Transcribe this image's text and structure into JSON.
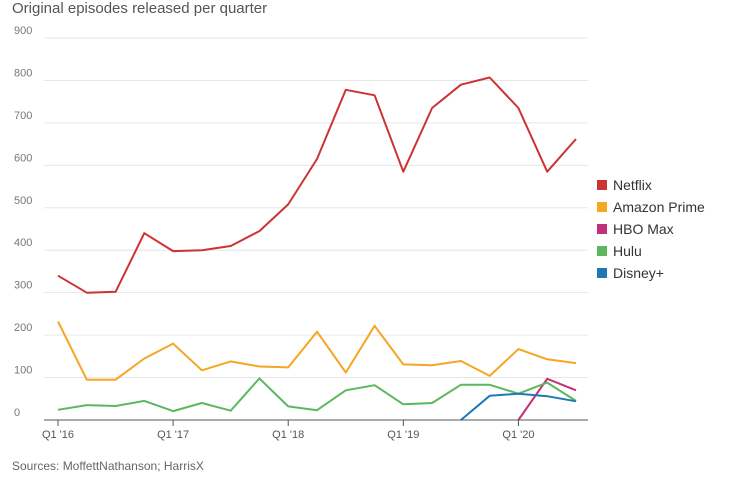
{
  "chart_data": {
    "type": "line",
    "title": "Original episodes released per quarter",
    "source": "Sources: MoffettNathanson; HarrisX",
    "x": [
      "Q1 2016",
      "Q2 2016",
      "Q3 2016",
      "Q4 2016",
      "Q1 2017",
      "Q2 2017",
      "Q3 2017",
      "Q4 2017",
      "Q1 2018",
      "Q2 2018",
      "Q3 2018",
      "Q4 2018",
      "Q1 2019",
      "Q2 2019",
      "Q3 2019",
      "Q4 2019",
      "Q1 2020",
      "Q2 2020",
      "Q3 2020"
    ],
    "x_tick_labels": [
      {
        "label": "Q1 '16",
        "index": 0
      },
      {
        "label": "Q1 '17",
        "index": 4
      },
      {
        "label": "Q1 '18",
        "index": 8
      },
      {
        "label": "Q1 '19",
        "index": 12
      },
      {
        "label": "Q1 '20",
        "index": 16
      }
    ],
    "y_ticks": [
      0,
      100,
      200,
      300,
      400,
      500,
      600,
      700,
      800,
      900
    ],
    "ylim": [
      0,
      900
    ],
    "grid": true,
    "legend_position": "right",
    "series": [
      {
        "name": "Netflix",
        "color": "#cc3333",
        "values": [
          340,
          300,
          302,
          440,
          398,
          400,
          410,
          445,
          508,
          615,
          778,
          765,
          585,
          735,
          790,
          807,
          735,
          585,
          662
        ]
      },
      {
        "name": "Amazon Prime",
        "color": "#f5a623",
        "values": [
          232,
          95,
          95,
          145,
          180,
          117,
          138,
          126,
          124,
          208,
          112,
          222,
          131,
          129,
          139,
          104,
          167,
          143,
          134
        ]
      },
      {
        "name": "HBO Max",
        "color": "#c2307a",
        "values": [
          null,
          null,
          null,
          null,
          null,
          null,
          null,
          null,
          null,
          null,
          null,
          null,
          null,
          null,
          null,
          null,
          0,
          97,
          70
        ]
      },
      {
        "name": "Hulu",
        "color": "#5cb85c",
        "values": [
          24,
          35,
          33,
          45,
          21,
          40,
          22,
          98,
          32,
          23,
          70,
          82,
          37,
          40,
          83,
          83,
          62,
          88,
          45
        ]
      },
      {
        "name": "Disney+",
        "color": "#1f78b4",
        "values": [
          null,
          null,
          null,
          null,
          null,
          null,
          null,
          null,
          null,
          null,
          null,
          null,
          null,
          null,
          0,
          57,
          62,
          56,
          44
        ]
      }
    ]
  }
}
